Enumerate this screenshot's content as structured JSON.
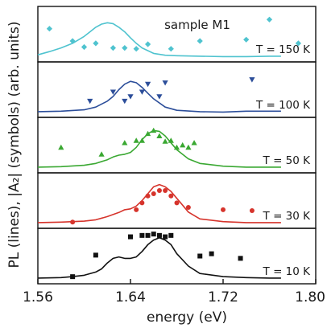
{
  "chart_data": {
    "type": "line",
    "title": "",
    "xlabel": "energy (eV)",
    "ylabel": "PL (lines), |A₂| (symbols) (arb. units)",
    "xlim": [
      1.56,
      1.8
    ],
    "x_ticks": [
      "1.56",
      "1.64",
      "1.72",
      "1.80"
    ],
    "annotation": "sample M1",
    "panels": [
      {
        "label": "T = 150 K",
        "color": "#4fc3cf",
        "marker": "diamond",
        "line": {
          "x": [
            1.56,
            1.57,
            1.58,
            1.59,
            1.6,
            1.605,
            1.61,
            1.615,
            1.62,
            1.625,
            1.63,
            1.635,
            1.64,
            1.645,
            1.65,
            1.66,
            1.67,
            1.68,
            1.7,
            1.72,
            1.74,
            1.76,
            1.77
          ],
          "y": [
            0.05,
            0.12,
            0.2,
            0.3,
            0.45,
            0.55,
            0.65,
            0.72,
            0.75,
            0.73,
            0.65,
            0.55,
            0.42,
            0.3,
            0.2,
            0.08,
            0.04,
            0.03,
            0.02,
            0.01,
            0.01,
            0.02,
            0.02
          ]
        },
        "points": {
          "x": [
            1.57,
            1.59,
            1.6,
            1.61,
            1.625,
            1.635,
            1.645,
            1.655,
            1.675,
            1.7,
            1.74,
            1.76,
            1.785
          ],
          "y": [
            0.62,
            0.35,
            0.22,
            0.3,
            0.2,
            0.2,
            0.18,
            0.28,
            0.18,
            0.35,
            0.38,
            0.82,
            0.3
          ]
        }
      },
      {
        "label": "T = 100 K",
        "color": "#2c4e9a",
        "marker": "triangle-down",
        "line": {
          "x": [
            1.56,
            1.58,
            1.6,
            1.61,
            1.62,
            1.625,
            1.63,
            1.635,
            1.64,
            1.645,
            1.65,
            1.655,
            1.66,
            1.67,
            1.68,
            1.7,
            1.72,
            1.74,
            1.76,
            1.77
          ],
          "y": [
            0.02,
            0.03,
            0.06,
            0.12,
            0.25,
            0.35,
            0.5,
            0.62,
            0.68,
            0.65,
            0.55,
            0.42,
            0.3,
            0.12,
            0.05,
            0.02,
            0.01,
            0.03,
            0.03,
            0.03
          ]
        },
        "points": {
          "x": [
            1.605,
            1.625,
            1.635,
            1.64,
            1.65,
            1.655,
            1.665,
            1.67,
            1.745
          ],
          "y": [
            0.25,
            0.45,
            0.25,
            0.35,
            0.45,
            0.62,
            0.35,
            0.65,
            0.72
          ]
        }
      },
      {
        "label": "T = 50 K",
        "color": "#3aa832",
        "marker": "triangle-up",
        "line": {
          "x": [
            1.56,
            1.58,
            1.6,
            1.61,
            1.62,
            1.625,
            1.63,
            1.635,
            1.64,
            1.645,
            1.65,
            1.655,
            1.66,
            1.665,
            1.67,
            1.675,
            1.68,
            1.69,
            1.7,
            1.72,
            1.74,
            1.76,
            1.77
          ],
          "y": [
            0.02,
            0.03,
            0.06,
            0.1,
            0.18,
            0.24,
            0.28,
            0.3,
            0.34,
            0.45,
            0.62,
            0.75,
            0.82,
            0.8,
            0.7,
            0.55,
            0.4,
            0.2,
            0.1,
            0.04,
            0.02,
            0.02,
            0.02
          ]
        },
        "points": {
          "x": [
            1.58,
            1.615,
            1.635,
            1.645,
            1.65,
            1.655,
            1.66,
            1.665,
            1.67,
            1.675,
            1.68,
            1.685,
            1.69,
            1.695
          ],
          "y": [
            0.45,
            0.3,
            0.55,
            0.6,
            0.6,
            0.75,
            0.82,
            0.7,
            0.58,
            0.6,
            0.45,
            0.5,
            0.45,
            0.55
          ]
        }
      },
      {
        "label": "T = 30 K",
        "color": "#d6342c",
        "marker": "circle",
        "line": {
          "x": [
            1.56,
            1.58,
            1.6,
            1.61,
            1.62,
            1.63,
            1.635,
            1.64,
            1.645,
            1.65,
            1.655,
            1.66,
            1.665,
            1.67,
            1.675,
            1.68,
            1.685,
            1.69,
            1.7,
            1.72,
            1.74,
            1.76,
            1.77
          ],
          "y": [
            0.02,
            0.03,
            0.05,
            0.08,
            0.15,
            0.24,
            0.3,
            0.32,
            0.38,
            0.5,
            0.65,
            0.8,
            0.85,
            0.8,
            0.7,
            0.55,
            0.4,
            0.25,
            0.1,
            0.04,
            0.02,
            0.02,
            0.02
          ]
        },
        "points": {
          "x": [
            1.59,
            1.645,
            1.65,
            1.655,
            1.66,
            1.665,
            1.67,
            1.675,
            1.68,
            1.69,
            1.72,
            1.745
          ],
          "y": [
            0.03,
            0.3,
            0.45,
            0.6,
            0.65,
            0.72,
            0.72,
            0.6,
            0.45,
            0.35,
            0.3,
            0.28
          ]
        }
      },
      {
        "label": "T = 10 K",
        "color": "#111111",
        "marker": "square",
        "line": {
          "x": [
            1.56,
            1.58,
            1.59,
            1.6,
            1.61,
            1.615,
            1.62,
            1.625,
            1.63,
            1.635,
            1.64,
            1.645,
            1.65,
            1.655,
            1.66,
            1.665,
            1.67,
            1.675,
            1.68,
            1.69,
            1.7,
            1.72,
            1.74,
            1.76,
            1.77
          ],
          "y": [
            0.02,
            0.03,
            0.05,
            0.08,
            0.15,
            0.22,
            0.35,
            0.45,
            0.48,
            0.45,
            0.45,
            0.48,
            0.6,
            0.75,
            0.85,
            0.9,
            0.85,
            0.75,
            0.55,
            0.28,
            0.12,
            0.05,
            0.03,
            0.02,
            0.02
          ]
        },
        "points": {
          "x": [
            1.59,
            1.61,
            1.64,
            1.65,
            1.655,
            1.66,
            1.665,
            1.67,
            1.675,
            1.7,
            1.71,
            1.735
          ],
          "y": [
            0.05,
            0.52,
            0.92,
            0.95,
            0.95,
            0.98,
            0.95,
            0.92,
            0.95,
            0.5,
            0.55,
            0.45
          ]
        }
      }
    ]
  }
}
